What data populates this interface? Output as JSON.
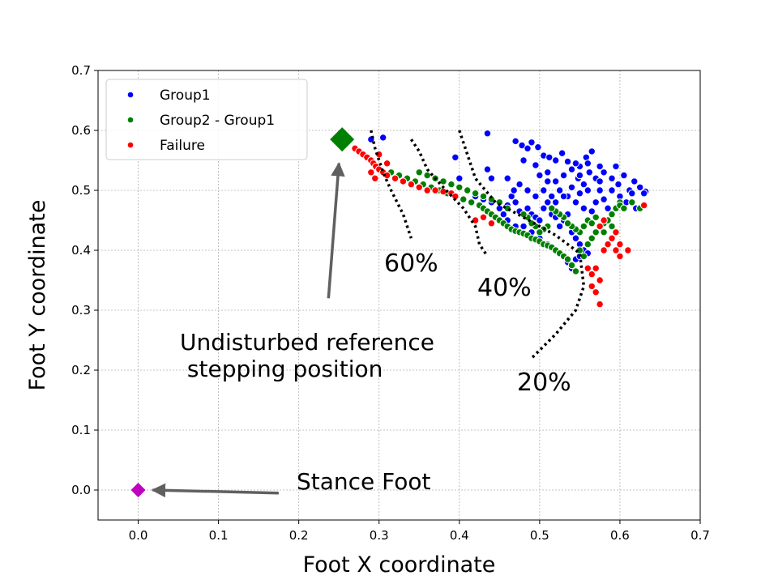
{
  "chart_data": {
    "type": "scatter",
    "xlabel": "Foot X coordinate",
    "ylabel": "Foot Y coordinate",
    "xlim": [
      -0.05,
      0.7
    ],
    "ylim": [
      -0.05,
      0.7
    ],
    "xticks": [
      "0.0",
      "0.1",
      "0.2",
      "0.3",
      "0.4",
      "0.5",
      "0.6",
      "0.7"
    ],
    "yticks": [
      "0.0",
      "0.1",
      "0.2",
      "0.3",
      "0.4",
      "0.5",
      "0.6",
      "0.7"
    ],
    "grid": true,
    "legend_position": "top-left",
    "series": [
      {
        "name": "Group1",
        "color": "#0000ff",
        "points": [
          [
            0.29,
            0.585
          ],
          [
            0.305,
            0.588
          ],
          [
            0.435,
            0.595
          ],
          [
            0.47,
            0.582
          ],
          [
            0.478,
            0.575
          ],
          [
            0.485,
            0.57
          ],
          [
            0.49,
            0.58
          ],
          [
            0.498,
            0.572
          ],
          [
            0.505,
            0.558
          ],
          [
            0.512,
            0.555
          ],
          [
            0.52,
            0.55
          ],
          [
            0.528,
            0.562
          ],
          [
            0.535,
            0.548
          ],
          [
            0.55,
            0.54
          ],
          [
            0.558,
            0.555
          ],
          [
            0.565,
            0.565
          ],
          [
            0.48,
            0.55
          ],
          [
            0.495,
            0.542
          ],
          [
            0.51,
            0.53
          ],
          [
            0.52,
            0.515
          ],
          [
            0.53,
            0.525
          ],
          [
            0.54,
            0.535
          ],
          [
            0.548,
            0.52
          ],
          [
            0.555,
            0.51
          ],
          [
            0.562,
            0.53
          ],
          [
            0.57,
            0.52
          ],
          [
            0.575,
            0.515
          ],
          [
            0.58,
            0.53
          ],
          [
            0.59,
            0.52
          ],
          [
            0.598,
            0.51
          ],
          [
            0.605,
            0.525
          ],
          [
            0.612,
            0.5
          ],
          [
            0.618,
            0.515
          ],
          [
            0.625,
            0.505
          ],
          [
            0.632,
            0.498
          ],
          [
            0.6,
            0.49
          ],
          [
            0.608,
            0.48
          ],
          [
            0.615,
            0.495
          ],
          [
            0.58,
            0.485
          ],
          [
            0.585,
            0.47
          ],
          [
            0.59,
            0.5
          ],
          [
            0.44,
            0.52
          ],
          [
            0.435,
            0.535
          ],
          [
            0.395,
            0.555
          ],
          [
            0.4,
            0.52
          ],
          [
            0.41,
            0.5
          ],
          [
            0.42,
            0.49
          ],
          [
            0.43,
            0.485
          ],
          [
            0.44,
            0.48
          ],
          [
            0.45,
            0.47
          ],
          [
            0.46,
            0.475
          ],
          [
            0.465,
            0.49
          ],
          [
            0.47,
            0.48
          ],
          [
            0.475,
            0.465
          ],
          [
            0.485,
            0.47
          ],
          [
            0.49,
            0.46
          ],
          [
            0.495,
            0.455
          ],
          [
            0.5,
            0.45
          ],
          [
            0.505,
            0.47
          ],
          [
            0.51,
            0.48
          ],
          [
            0.515,
            0.46
          ],
          [
            0.52,
            0.455
          ],
          [
            0.525,
            0.44
          ],
          [
            0.53,
            0.45
          ],
          [
            0.535,
            0.46
          ],
          [
            0.54,
            0.43
          ],
          [
            0.545,
            0.42
          ],
          [
            0.55,
            0.41
          ],
          [
            0.555,
            0.4
          ],
          [
            0.56,
            0.395
          ],
          [
            0.545,
            0.385
          ],
          [
            0.535,
            0.38
          ],
          [
            0.54,
            0.37
          ],
          [
            0.55,
            0.39
          ],
          [
            0.52,
            0.4
          ],
          [
            0.51,
            0.41
          ],
          [
            0.5,
            0.42
          ],
          [
            0.49,
            0.43
          ],
          [
            0.48,
            0.44
          ],
          [
            0.47,
            0.44
          ],
          [
            0.46,
            0.45
          ],
          [
            0.455,
            0.46
          ],
          [
            0.445,
            0.455
          ],
          [
            0.525,
            0.5
          ],
          [
            0.535,
            0.49
          ],
          [
            0.545,
            0.48
          ],
          [
            0.555,
            0.47
          ],
          [
            0.565,
            0.465
          ],
          [
            0.57,
            0.48
          ],
          [
            0.575,
            0.5
          ],
          [
            0.56,
            0.5
          ],
          [
            0.55,
            0.495
          ],
          [
            0.54,
            0.505
          ],
          [
            0.53,
            0.49
          ],
          [
            0.52,
            0.48
          ],
          [
            0.515,
            0.49
          ],
          [
            0.505,
            0.5
          ],
          [
            0.495,
            0.49
          ],
          [
            0.485,
            0.5
          ],
          [
            0.475,
            0.51
          ],
          [
            0.468,
            0.5
          ],
          [
            0.46,
            0.52
          ],
          [
            0.5,
            0.525
          ],
          [
            0.51,
            0.515
          ],
          [
            0.545,
            0.545
          ],
          [
            0.55,
            0.525
          ],
          [
            0.56,
            0.545
          ],
          [
            0.62,
            0.47
          ],
          [
            0.63,
            0.495
          ],
          [
            0.595,
            0.54
          ],
          [
            0.575,
            0.54
          ]
        ]
      },
      {
        "name": "Group2 - Group1",
        "color": "#008000",
        "points": [
          [
            0.315,
            0.53
          ],
          [
            0.325,
            0.525
          ],
          [
            0.335,
            0.52
          ],
          [
            0.345,
            0.515
          ],
          [
            0.355,
            0.51
          ],
          [
            0.365,
            0.505
          ],
          [
            0.375,
            0.5
          ],
          [
            0.385,
            0.495
          ],
          [
            0.395,
            0.49
          ],
          [
            0.405,
            0.485
          ],
          [
            0.415,
            0.48
          ],
          [
            0.425,
            0.475
          ],
          [
            0.43,
            0.47
          ],
          [
            0.435,
            0.465
          ],
          [
            0.44,
            0.46
          ],
          [
            0.445,
            0.455
          ],
          [
            0.45,
            0.45
          ],
          [
            0.455,
            0.445
          ],
          [
            0.46,
            0.44
          ],
          [
            0.465,
            0.435
          ],
          [
            0.47,
            0.432
          ],
          [
            0.475,
            0.43
          ],
          [
            0.48,
            0.428
          ],
          [
            0.485,
            0.425
          ],
          [
            0.49,
            0.42
          ],
          [
            0.495,
            0.418
          ],
          [
            0.5,
            0.415
          ],
          [
            0.505,
            0.41
          ],
          [
            0.51,
            0.408
          ],
          [
            0.515,
            0.405
          ],
          [
            0.52,
            0.4
          ],
          [
            0.525,
            0.395
          ],
          [
            0.53,
            0.39
          ],
          [
            0.535,
            0.385
          ],
          [
            0.54,
            0.375
          ],
          [
            0.545,
            0.365
          ],
          [
            0.55,
            0.4
          ],
          [
            0.555,
            0.39
          ],
          [
            0.56,
            0.41
          ],
          [
            0.565,
            0.42
          ],
          [
            0.57,
            0.43
          ],
          [
            0.575,
            0.44
          ],
          [
            0.58,
            0.445
          ],
          [
            0.585,
            0.45
          ],
          [
            0.59,
            0.46
          ],
          [
            0.595,
            0.47
          ],
          [
            0.6,
            0.48
          ],
          [
            0.56,
            0.45
          ],
          [
            0.555,
            0.44
          ],
          [
            0.565,
            0.445
          ],
          [
            0.57,
            0.455
          ],
          [
            0.55,
            0.43
          ],
          [
            0.545,
            0.435
          ],
          [
            0.54,
            0.44
          ],
          [
            0.535,
            0.445
          ],
          [
            0.53,
            0.455
          ],
          [
            0.525,
            0.46
          ],
          [
            0.52,
            0.465
          ],
          [
            0.515,
            0.47
          ],
          [
            0.51,
            0.44
          ],
          [
            0.505,
            0.435
          ],
          [
            0.5,
            0.43
          ],
          [
            0.495,
            0.44
          ],
          [
            0.49,
            0.445
          ],
          [
            0.58,
            0.43
          ],
          [
            0.59,
            0.44
          ],
          [
            0.485,
            0.455
          ],
          [
            0.48,
            0.46
          ],
          [
            0.45,
            0.48
          ],
          [
            0.46,
            0.47
          ],
          [
            0.44,
            0.485
          ],
          [
            0.43,
            0.49
          ],
          [
            0.42,
            0.495
          ],
          [
            0.41,
            0.5
          ],
          [
            0.4,
            0.505
          ],
          [
            0.39,
            0.51
          ],
          [
            0.38,
            0.515
          ],
          [
            0.37,
            0.52
          ],
          [
            0.36,
            0.525
          ],
          [
            0.35,
            0.53
          ],
          [
            0.6,
            0.475
          ],
          [
            0.605,
            0.47
          ],
          [
            0.615,
            0.48
          ],
          [
            0.625,
            0.47
          ]
        ]
      },
      {
        "name": "Failure",
        "color": "#ff0000",
        "points": [
          [
            0.27,
            0.57
          ],
          [
            0.275,
            0.565
          ],
          [
            0.28,
            0.56
          ],
          [
            0.285,
            0.555
          ],
          [
            0.29,
            0.55
          ],
          [
            0.293,
            0.545
          ],
          [
            0.296,
            0.54
          ],
          [
            0.3,
            0.535
          ],
          [
            0.305,
            0.53
          ],
          [
            0.31,
            0.525
          ],
          [
            0.32,
            0.52
          ],
          [
            0.33,
            0.515
          ],
          [
            0.34,
            0.51
          ],
          [
            0.35,
            0.505
          ],
          [
            0.36,
            0.5
          ],
          [
            0.37,
            0.5
          ],
          [
            0.38,
            0.498
          ],
          [
            0.39,
            0.495
          ],
          [
            0.395,
            0.49
          ],
          [
            0.3,
            0.56
          ],
          [
            0.31,
            0.545
          ],
          [
            0.29,
            0.53
          ],
          [
            0.295,
            0.52
          ],
          [
            0.56,
            0.37
          ],
          [
            0.565,
            0.36
          ],
          [
            0.57,
            0.37
          ],
          [
            0.575,
            0.35
          ],
          [
            0.565,
            0.34
          ],
          [
            0.57,
            0.33
          ],
          [
            0.575,
            0.31
          ],
          [
            0.58,
            0.4
          ],
          [
            0.585,
            0.41
          ],
          [
            0.59,
            0.42
          ],
          [
            0.595,
            0.43
          ],
          [
            0.6,
            0.41
          ],
          [
            0.6,
            0.39
          ],
          [
            0.61,
            0.4
          ],
          [
            0.63,
            0.475
          ],
          [
            0.575,
            0.44
          ],
          [
            0.58,
            0.45
          ],
          [
            0.595,
            0.4
          ],
          [
            0.42,
            0.45
          ],
          [
            0.43,
            0.455
          ],
          [
            0.44,
            0.445
          ]
        ]
      }
    ],
    "markers": [
      {
        "label": "reference",
        "x": 0.254,
        "y": 0.585,
        "color": "#008000",
        "shape": "diamond"
      },
      {
        "label": "stance",
        "x": 0.0,
        "y": 0.0,
        "color": "#c000c0",
        "shape": "diamond"
      }
    ],
    "contours": [
      {
        "label": "60%",
        "points": [
          [
            0.29,
            0.6
          ],
          [
            0.295,
            0.57
          ],
          [
            0.305,
            0.53
          ],
          [
            0.315,
            0.5
          ],
          [
            0.33,
            0.46
          ],
          [
            0.34,
            0.42
          ]
        ]
      },
      {
        "label": "40%",
        "points": [
          [
            0.34,
            0.585
          ],
          [
            0.35,
            0.565
          ],
          [
            0.36,
            0.535
          ],
          [
            0.38,
            0.505
          ],
          [
            0.405,
            0.47
          ],
          [
            0.42,
            0.44
          ],
          [
            0.425,
            0.41
          ],
          [
            0.435,
            0.39
          ]
        ]
      },
      {
        "label": "20%",
        "points": [
          [
            0.4,
            0.6
          ],
          [
            0.41,
            0.56
          ],
          [
            0.42,
            0.52
          ],
          [
            0.445,
            0.48
          ],
          [
            0.48,
            0.455
          ],
          [
            0.52,
            0.425
          ],
          [
            0.55,
            0.395
          ],
          [
            0.555,
            0.34
          ],
          [
            0.545,
            0.3
          ],
          [
            0.52,
            0.26
          ],
          [
            0.49,
            0.22
          ]
        ]
      }
    ],
    "annotations": [
      {
        "text_lines": [
          "Undisturbed reference",
          " stepping position"
        ],
        "arrow_from": [
          0.237,
          0.32
        ],
        "arrow_to": [
          0.25,
          0.545
        ]
      },
      {
        "text_lines": [
          "Stance Foot"
        ],
        "arrow_from": [
          0.175,
          -0.005
        ],
        "arrow_to": [
          0.018,
          0.0
        ]
      },
      {
        "text_lines": [
          "60%"
        ],
        "at": [
          0.34,
          0.375
        ]
      },
      {
        "text_lines": [
          "40%"
        ],
        "at": [
          0.455,
          0.345
        ]
      },
      {
        "text_lines": [
          "20%"
        ],
        "at": [
          0.505,
          0.2
        ]
      }
    ]
  }
}
